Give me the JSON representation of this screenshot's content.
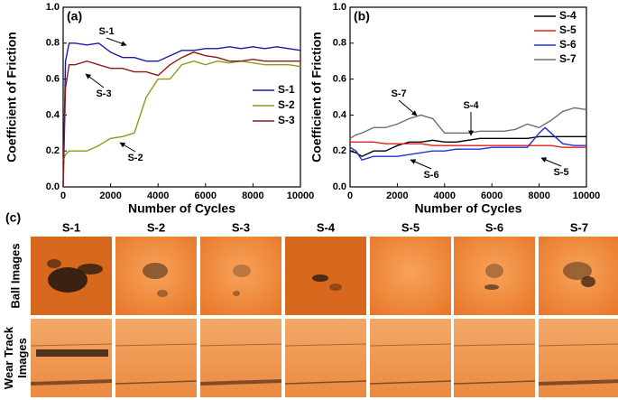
{
  "chart_data": [
    {
      "type": "line",
      "title": "(a)",
      "ylabel": "Coefficient of Friction",
      "xlabel": "Number of Cycles",
      "xlim": [
        0,
        10000
      ],
      "xticks": [
        0,
        2000,
        4000,
        6000,
        8000,
        10000
      ],
      "ylim": [
        0,
        1.0
      ],
      "yticks": [
        {
          "value": 0,
          "label": "0.0"
        },
        0.2,
        0.4,
        0.6,
        0.8,
        {
          "value": 1.0,
          "label": "1.0"
        }
      ],
      "legend": "right",
      "x": [
        0,
        100,
        250,
        500,
        1000,
        1500,
        2000,
        2500,
        3000,
        3500,
        4000,
        4500,
        5000,
        5500,
        6000,
        6500,
        7000,
        7500,
        8000,
        8500,
        9000,
        9500,
        10000
      ],
      "series": [
        {
          "name": "S-1",
          "color": "#1a1aa8",
          "values": [
            0,
            0.7,
            0.8,
            0.8,
            0.79,
            0.8,
            0.75,
            0.72,
            0.72,
            0.7,
            0.7,
            0.73,
            0.76,
            0.76,
            0.77,
            0.77,
            0.78,
            0.77,
            0.78,
            0.77,
            0.78,
            0.77,
            0.76
          ]
        },
        {
          "name": "S-2",
          "color": "#8a9a1a",
          "values": [
            0.15,
            0.18,
            0.2,
            0.2,
            0.2,
            0.23,
            0.27,
            0.28,
            0.3,
            0.5,
            0.6,
            0.6,
            0.68,
            0.7,
            0.68,
            0.7,
            0.69,
            0.7,
            0.69,
            0.68,
            0.68,
            0.68,
            0.67
          ]
        },
        {
          "name": "S-3",
          "color": "#8b1a1a",
          "values": [
            0,
            0.55,
            0.68,
            0.68,
            0.7,
            0.68,
            0.66,
            0.66,
            0.64,
            0.64,
            0.62,
            0.68,
            0.72,
            0.75,
            0.73,
            0.72,
            0.7,
            0.7,
            0.71,
            0.7,
            0.7,
            0.7,
            0.7
          ]
        }
      ],
      "annotations": [
        "S-1",
        "S-3",
        "S-2"
      ]
    },
    {
      "type": "line",
      "title": "(b)",
      "ylabel": "Coefficient of Friction",
      "xlabel": "Number of Cycles",
      "xlim": [
        0,
        10000
      ],
      "xticks": [
        0,
        2000,
        4000,
        6000,
        8000,
        10000
      ],
      "ylim": [
        0,
        1.0
      ],
      "yticks": [
        {
          "value": 0,
          "label": "0.0"
        },
        0.2,
        0.4,
        0.6,
        0.8,
        {
          "value": 1.0,
          "label": "1.0"
        }
      ],
      "legend": "upper right",
      "x": [
        0,
        250,
        500,
        1000,
        1500,
        2000,
        2500,
        3000,
        3500,
        4000,
        4500,
        5000,
        5500,
        6000,
        6500,
        7000,
        7500,
        8000,
        8250,
        8500,
        9000,
        9500,
        10000
      ],
      "series": [
        {
          "name": "S-4",
          "color": "#000000",
          "values": [
            0.2,
            0.19,
            0.17,
            0.2,
            0.2,
            0.23,
            0.25,
            0.25,
            0.26,
            0.25,
            0.25,
            0.26,
            0.27,
            0.27,
            0.27,
            0.27,
            0.27,
            0.28,
            0.28,
            0.28,
            0.28,
            0.28,
            0.28
          ]
        },
        {
          "name": "S-5",
          "color": "#e02020",
          "values": [
            0.25,
            0.25,
            0.25,
            0.25,
            0.24,
            0.24,
            0.24,
            0.24,
            0.23,
            0.23,
            0.23,
            0.23,
            0.23,
            0.23,
            0.23,
            0.23,
            0.23,
            0.23,
            0.23,
            0.23,
            0.22,
            0.22,
            0.22
          ]
        },
        {
          "name": "S-6",
          "color": "#2030d0",
          "values": [
            0.22,
            0.2,
            0.15,
            0.17,
            0.17,
            0.17,
            0.18,
            0.19,
            0.2,
            0.2,
            0.21,
            0.21,
            0.21,
            0.22,
            0.22,
            0.22,
            0.22,
            0.3,
            0.33,
            0.3,
            0.24,
            0.23,
            0.23
          ]
        },
        {
          "name": "S-7",
          "color": "#707070",
          "values": [
            0.27,
            0.29,
            0.3,
            0.33,
            0.33,
            0.35,
            0.38,
            0.4,
            0.38,
            0.3,
            0.3,
            0.3,
            0.31,
            0.31,
            0.31,
            0.32,
            0.35,
            0.33,
            0.35,
            0.37,
            0.42,
            0.44,
            0.43
          ]
        }
      ],
      "annotations": [
        "S-7",
        "S-4",
        "S-6",
        "S-5"
      ]
    }
  ],
  "panel_c": {
    "label": "(c)",
    "samples": [
      "S-1",
      "S-2",
      "S-3",
      "S-4",
      "S-5",
      "S-6",
      "S-7"
    ],
    "row_labels": [
      [
        "Ball Images"
      ],
      [
        "Wear Track",
        "Images"
      ]
    ]
  }
}
